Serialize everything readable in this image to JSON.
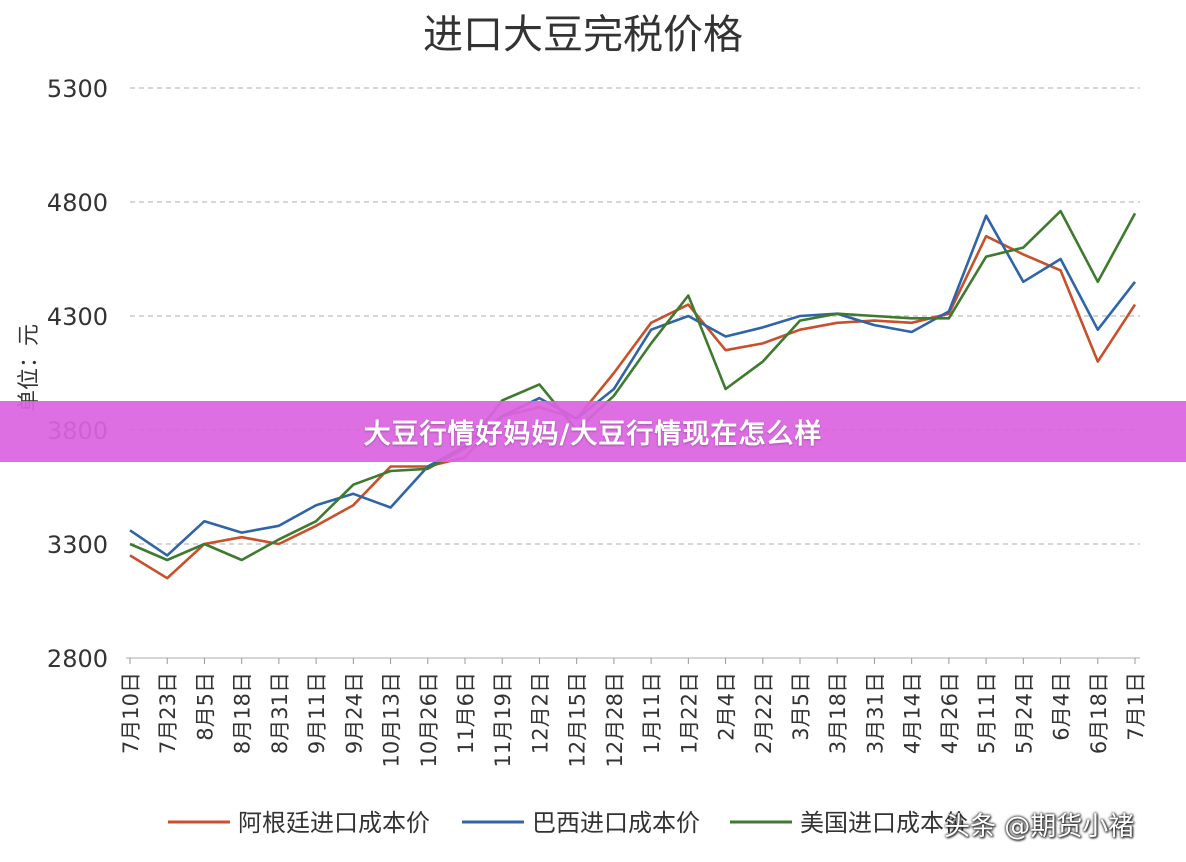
{
  "banner": {
    "text": "大豆行情好妈妈/大豆行情现在怎么样"
  },
  "watermark": {
    "text": "头条 @期货小褚"
  },
  "chart_data": {
    "type": "line",
    "title": "进口大豆完税价格",
    "ylabel": "单位：元",
    "xlabel": "",
    "ylim": [
      2800,
      5300
    ],
    "yticks": [
      2800,
      3300,
      3800,
      4300,
      4800,
      5300
    ],
    "grid": true,
    "legend_position": "bottom",
    "categories": [
      "7月10日",
      "7月23日",
      "8月5日",
      "8月18日",
      "8月31日",
      "9月11日",
      "9月24日",
      "10月13日",
      "10月26日",
      "11月6日",
      "11月19日",
      "12月2日",
      "12月15日",
      "12月28日",
      "1月11日",
      "1月22日",
      "2月4日",
      "2月22日",
      "3月5日",
      "3月18日",
      "3月31日",
      "4月14日",
      "4月26日",
      "5月11日",
      "5月24日",
      "6月4日",
      "6月18日",
      "7月1日"
    ],
    "series": [
      {
        "name": "阿根廷进口成本价",
        "color": "#c8502a",
        "values": [
          3250,
          3150,
          3300,
          3330,
          3300,
          3380,
          3470,
          3640,
          3640,
          3680,
          3860,
          3900,
          3850,
          4050,
          4270,
          4350,
          4150,
          4180,
          4240,
          4270,
          4280,
          4270,
          4310,
          4650,
          4570,
          4500,
          4100,
          4350
        ]
      },
      {
        "name": "巴西进口成本价",
        "color": "#2f64a8",
        "values": [
          3360,
          3250,
          3400,
          3350,
          3380,
          3470,
          3520,
          3460,
          3640,
          3730,
          3860,
          3940,
          3850,
          3980,
          4240,
          4300,
          4210,
          4250,
          4300,
          4310,
          4260,
          4230,
          4320,
          4740,
          4450,
          4550,
          4240,
          4450
        ]
      },
      {
        "name": "美国进口成本价",
        "color": "#3f7a2e",
        "values": [
          3300,
          3230,
          3300,
          3230,
          3320,
          3400,
          3560,
          3620,
          3630,
          3720,
          3930,
          4000,
          3800,
          3950,
          4180,
          4390,
          3980,
          4100,
          4280,
          4310,
          4300,
          4290,
          4290,
          4560,
          4600,
          4760,
          4450,
          4750
        ]
      }
    ]
  }
}
